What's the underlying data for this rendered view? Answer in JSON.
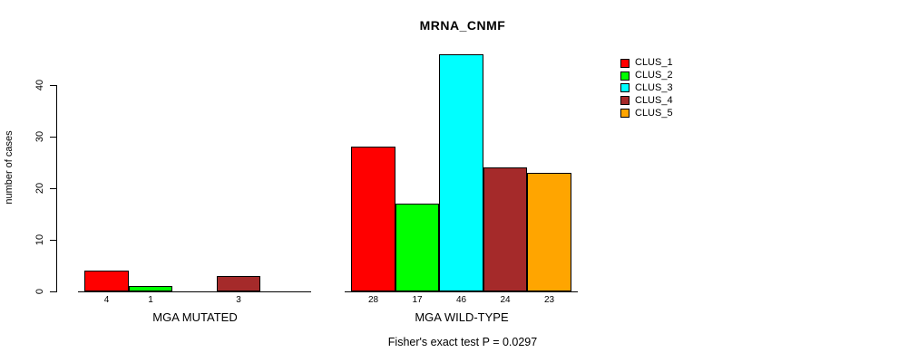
{
  "title": "MRNA_CNMF",
  "footer": "Fisher's exact test P = 0.0297",
  "chart_data": {
    "type": "bar",
    "title": "MRNA_CNMF",
    "xlabel": "",
    "ylabel": "number of cases",
    "ylim": [
      0,
      46
    ],
    "yticks": [
      0,
      10,
      20,
      30,
      40
    ],
    "grid": false,
    "legend_position": "top-right",
    "bar_value_labels_shown": true,
    "categories": [
      "MGA MUTATED",
      "MGA WILD-TYPE"
    ],
    "series": [
      {
        "name": "CLUS_1",
        "color": "#ff0000",
        "values": [
          4,
          28
        ]
      },
      {
        "name": "CLUS_2",
        "color": "#00ff00",
        "values": [
          1,
          17
        ]
      },
      {
        "name": "CLUS_3",
        "color": "#00ffff",
        "values": [
          0,
          46
        ]
      },
      {
        "name": "CLUS_4",
        "color": "#a52a2a",
        "values": [
          3,
          24
        ]
      },
      {
        "name": "CLUS_5",
        "color": "#ffa500",
        "values": [
          0,
          23
        ]
      }
    ],
    "annotation": "Fisher's exact test P = 0.0297"
  },
  "colors": {
    "axis": "#000000",
    "background": "#ffffff"
  }
}
